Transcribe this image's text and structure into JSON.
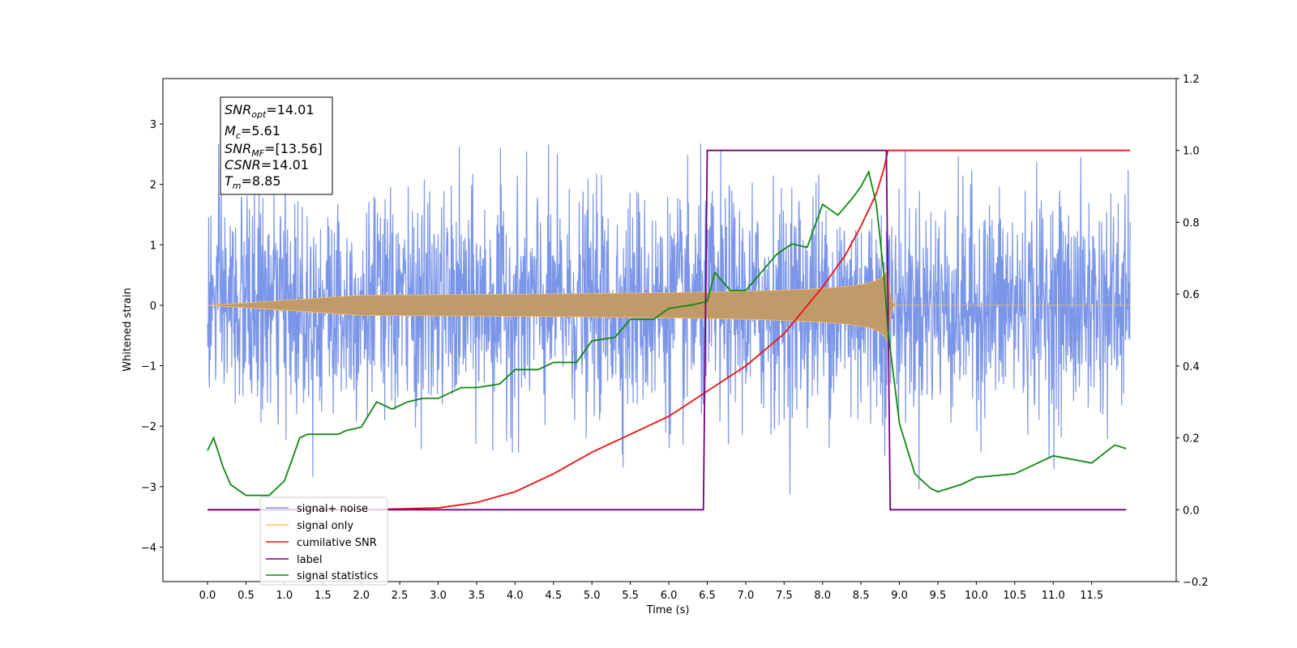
{
  "chart_data": {
    "type": "line",
    "xlabel": "Time (s)",
    "ylabel": "Whitened strain",
    "xlim": [
      -0.58,
      12.6
    ],
    "ylim": [
      -4.57,
      3.75
    ],
    "y2lim": [
      -0.2,
      1.2
    ],
    "x_ticks": [
      "0.0",
      "0.5",
      "1.0",
      "1.5",
      "2.0",
      "2.5",
      "3.0",
      "3.5",
      "4.0",
      "4.5",
      "5.0",
      "5.5",
      "6.0",
      "6.5",
      "7.0",
      "7.5",
      "8.0",
      "8.5",
      "9.0",
      "9.5",
      "10.0",
      "10.5",
      "11.0",
      "11.5"
    ],
    "y_ticks": [
      "3",
      "2",
      "1",
      "0",
      "−1",
      "−2",
      "−3",
      "−4"
    ],
    "y2_ticks": [
      "1.2",
      "1.0",
      "0.8",
      "0.6",
      "0.4",
      "0.2",
      "0.0",
      "−0.2"
    ],
    "grid": false,
    "legend_placement": "lower-left",
    "annotation": {
      "snr_opt": {
        "main": "SNR",
        "sub": "opt",
        "value": "=14.01"
      },
      "mc": {
        "main": "M",
        "sub": "c",
        "value": "=5.61"
      },
      "snr_mf": {
        "main": "SNR",
        "sub": "MF",
        "value": "=[13.56]"
      },
      "csnr": {
        "main": "CSNR",
        "sub": "",
        "value": "=14.01"
      },
      "tm": {
        "main": "T",
        "sub": "m",
        "value": "=8.85"
      }
    },
    "series": [
      {
        "name": "signal+ noise",
        "color": "#7b96e8",
        "axis": "left",
        "noise_std": 0.9,
        "duration": 12.0
      },
      {
        "name": "signal only",
        "color": "#ffbb55",
        "axis": "left",
        "merger_time": 8.85,
        "peak_amplitude": 0.65
      },
      {
        "name": "cumilative SNR",
        "color": "#ee1111",
        "axis": "right",
        "x": [
          0.0,
          2.0,
          3.0,
          3.5,
          4.0,
          4.5,
          5.0,
          5.5,
          6.0,
          6.5,
          7.0,
          7.5,
          8.0,
          8.3,
          8.5,
          8.7,
          8.8,
          8.85,
          12.0
        ],
        "y": [
          0.0,
          0.0,
          0.005,
          0.02,
          0.05,
          0.1,
          0.16,
          0.21,
          0.26,
          0.33,
          0.4,
          0.49,
          0.62,
          0.71,
          0.79,
          0.88,
          0.95,
          1.0,
          1.0
        ]
      },
      {
        "name": "label",
        "color": "#770077",
        "axis": "right",
        "x": [
          0.0,
          6.45,
          6.5,
          8.83,
          8.88,
          11.95
        ],
        "y": [
          0.0,
          0.0,
          1.0,
          1.0,
          0.0,
          0.0
        ]
      },
      {
        "name": "signal statistics",
        "color": "#118811",
        "axis": "right",
        "x": [
          0.0,
          0.08,
          0.2,
          0.3,
          0.5,
          0.7,
          0.8,
          1.0,
          1.1,
          1.2,
          1.3,
          1.5,
          1.7,
          1.8,
          2.0,
          2.2,
          2.4,
          2.6,
          2.8,
          3.0,
          3.3,
          3.5,
          3.8,
          4.0,
          4.3,
          4.5,
          4.8,
          5.0,
          5.3,
          5.5,
          5.8,
          6.0,
          6.3,
          6.5,
          6.6,
          6.8,
          7.0,
          7.2,
          7.4,
          7.6,
          7.8,
          8.0,
          8.2,
          8.4,
          8.5,
          8.6,
          8.7,
          8.8,
          8.85,
          9.0,
          9.2,
          9.4,
          9.5,
          9.8,
          10.0,
          10.5,
          11.0,
          11.5,
          11.8,
          11.95
        ],
        "y": [
          0.165,
          0.2,
          0.12,
          0.07,
          0.04,
          0.04,
          0.04,
          0.08,
          0.14,
          0.2,
          0.21,
          0.21,
          0.21,
          0.22,
          0.23,
          0.3,
          0.28,
          0.3,
          0.31,
          0.31,
          0.34,
          0.34,
          0.35,
          0.39,
          0.39,
          0.41,
          0.41,
          0.47,
          0.48,
          0.53,
          0.53,
          0.56,
          0.57,
          0.58,
          0.66,
          0.61,
          0.61,
          0.66,
          0.71,
          0.74,
          0.73,
          0.85,
          0.82,
          0.87,
          0.9,
          0.94,
          0.85,
          0.65,
          0.5,
          0.24,
          0.1,
          0.06,
          0.05,
          0.07,
          0.09,
          0.1,
          0.15,
          0.13,
          0.18,
          0.17
        ]
      }
    ]
  }
}
